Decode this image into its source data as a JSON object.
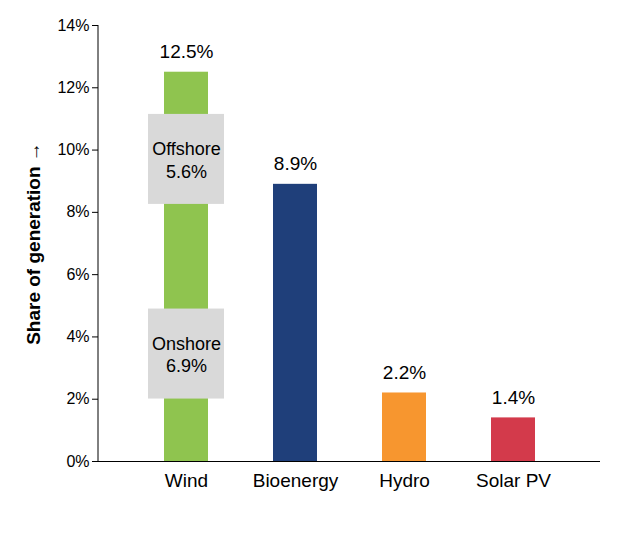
{
  "chart_data": {
    "type": "bar",
    "ylabel": "Share of generation",
    "categories": [
      "Wind",
      "Bioenergy",
      "Hydro",
      "Solar PV"
    ],
    "values": [
      12.5,
      8.9,
      2.2,
      1.4
    ],
    "value_labels": [
      "12.5%",
      "8.9%",
      "2.2%",
      "1.4%"
    ],
    "colors": [
      "#8fc44f",
      "#1f3f7a",
      "#f7962f",
      "#d33a4b"
    ],
    "ylim": [
      0,
      14
    ],
    "yticks": [
      {
        "value": 0,
        "label": "0%"
      },
      {
        "value": 2,
        "label": "2%"
      },
      {
        "value": 4,
        "label": "4%"
      },
      {
        "value": 6,
        "label": "6%"
      },
      {
        "value": 8,
        "label": "8%"
      },
      {
        "value": 10,
        "label": "10%"
      },
      {
        "value": 12,
        "label": "12%"
      },
      {
        "value": 14,
        "label": "14%"
      }
    ],
    "data_labels": true,
    "grid": false,
    "annotations": [
      {
        "category": "Wind",
        "label": "Onshore",
        "value": 6.9,
        "value_label": "6.9%"
      },
      {
        "category": "Wind",
        "label": "Offshore",
        "value": 5.6,
        "value_label": "5.6%"
      }
    ]
  }
}
